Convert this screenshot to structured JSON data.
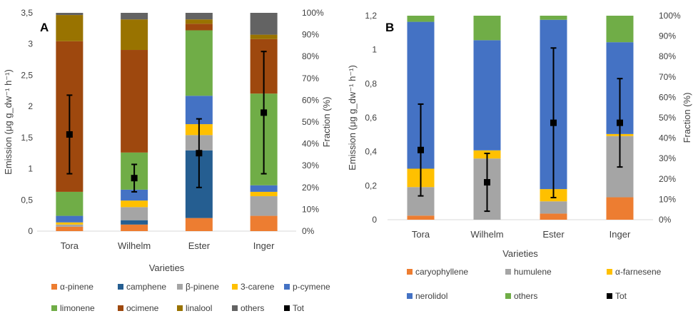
{
  "chart_data": [
    {
      "type": "bar",
      "stacked": true,
      "panel_label": "A",
      "xlabel": "Varieties",
      "ylabel": "Emission (μg g_dw⁻¹ h⁻¹)",
      "ylabel_right": "Fraction (%)",
      "ylim": [
        0,
        3.5
      ],
      "ylim_right": [
        0,
        100
      ],
      "yticks": [
        "0",
        "0,5",
        "1",
        "1,5",
        "2",
        "2,5",
        "3",
        "3,5"
      ],
      "yticks_right": [
        "0%",
        "10%",
        "20%",
        "30%",
        "40%",
        "50%",
        "60%",
        "70%",
        "80%",
        "90%",
        "100%"
      ],
      "categories": [
        "Tora",
        "Wilhelm",
        "Ester",
        "Inger"
      ],
      "series": [
        {
          "name": "α-pinene",
          "color": "#ED7D31",
          "values": [
            2,
            3,
            6,
            7
          ]
        },
        {
          "name": "camphene",
          "color": "#255E91",
          "values": [
            0,
            2,
            31,
            0
          ]
        },
        {
          "name": "β-pinene",
          "color": "#A5A5A5",
          "values": [
            1,
            6,
            7,
            9
          ]
        },
        {
          "name": "3-carene",
          "color": "#FFC000",
          "values": [
            1,
            3,
            5,
            2
          ]
        },
        {
          "name": "p-cymene",
          "color": "#4472C4",
          "values": [
            3,
            5,
            13,
            3
          ]
        },
        {
          "name": "limonene",
          "color": "#70AD47",
          "values": [
            11,
            17,
            30,
            42
          ]
        },
        {
          "name": "ocimene",
          "color": "#9E480E",
          "values": [
            69,
            47,
            3,
            25
          ]
        },
        {
          "name": "linalool",
          "color": "#997300",
          "values": [
            12,
            14,
            2,
            2
          ]
        },
        {
          "name": "others",
          "color": "#636363",
          "values": [
            1,
            3,
            3,
            10
          ]
        }
      ],
      "total": {
        "name": "Tot",
        "color": "#000000",
        "values": [
          1.55,
          0.85,
          1.25,
          1.9
        ],
        "error": [
          0.63,
          0.22,
          0.55,
          0.98
        ]
      }
    },
    {
      "type": "bar",
      "stacked": true,
      "panel_label": "B",
      "xlabel": "Varieties",
      "ylabel": "Emission (μg g_dw⁻¹ h⁻¹)",
      "ylabel_right": "Fraction (%)",
      "ylim": [
        0,
        1.2
      ],
      "ylim_right": [
        0,
        100
      ],
      "yticks": [
        "0",
        "0,2",
        "0,4",
        "0,6",
        "0,8",
        "1",
        "1,2"
      ],
      "yticks_right": [
        "0%",
        "10%",
        "20%",
        "30%",
        "40%",
        "50%",
        "60%",
        "70%",
        "80%",
        "90%",
        "100%"
      ],
      "categories": [
        "Tora",
        "Wilhelm",
        "Ester",
        "Inger"
      ],
      "series": [
        {
          "name": "caryophyllene",
          "color": "#ED7D31",
          "values": [
            2,
            0,
            3,
            11
          ]
        },
        {
          "name": "humulene",
          "color": "#A5A5A5",
          "values": [
            14,
            30,
            6,
            30
          ]
        },
        {
          "name": "α-farnesene",
          "color": "#FFC000",
          "values": [
            9,
            4,
            6,
            1
          ]
        },
        {
          "name": "nerolidol",
          "color": "#4472C4",
          "values": [
            72,
            54,
            83,
            45
          ]
        },
        {
          "name": "others",
          "color": "#70AD47",
          "values": [
            3,
            12,
            2,
            13
          ]
        }
      ],
      "total": {
        "name": "Tot",
        "color": "#000000",
        "values": [
          0.41,
          0.22,
          0.57,
          0.57
        ],
        "error": [
          0.27,
          0.17,
          0.44,
          0.26
        ]
      }
    }
  ]
}
